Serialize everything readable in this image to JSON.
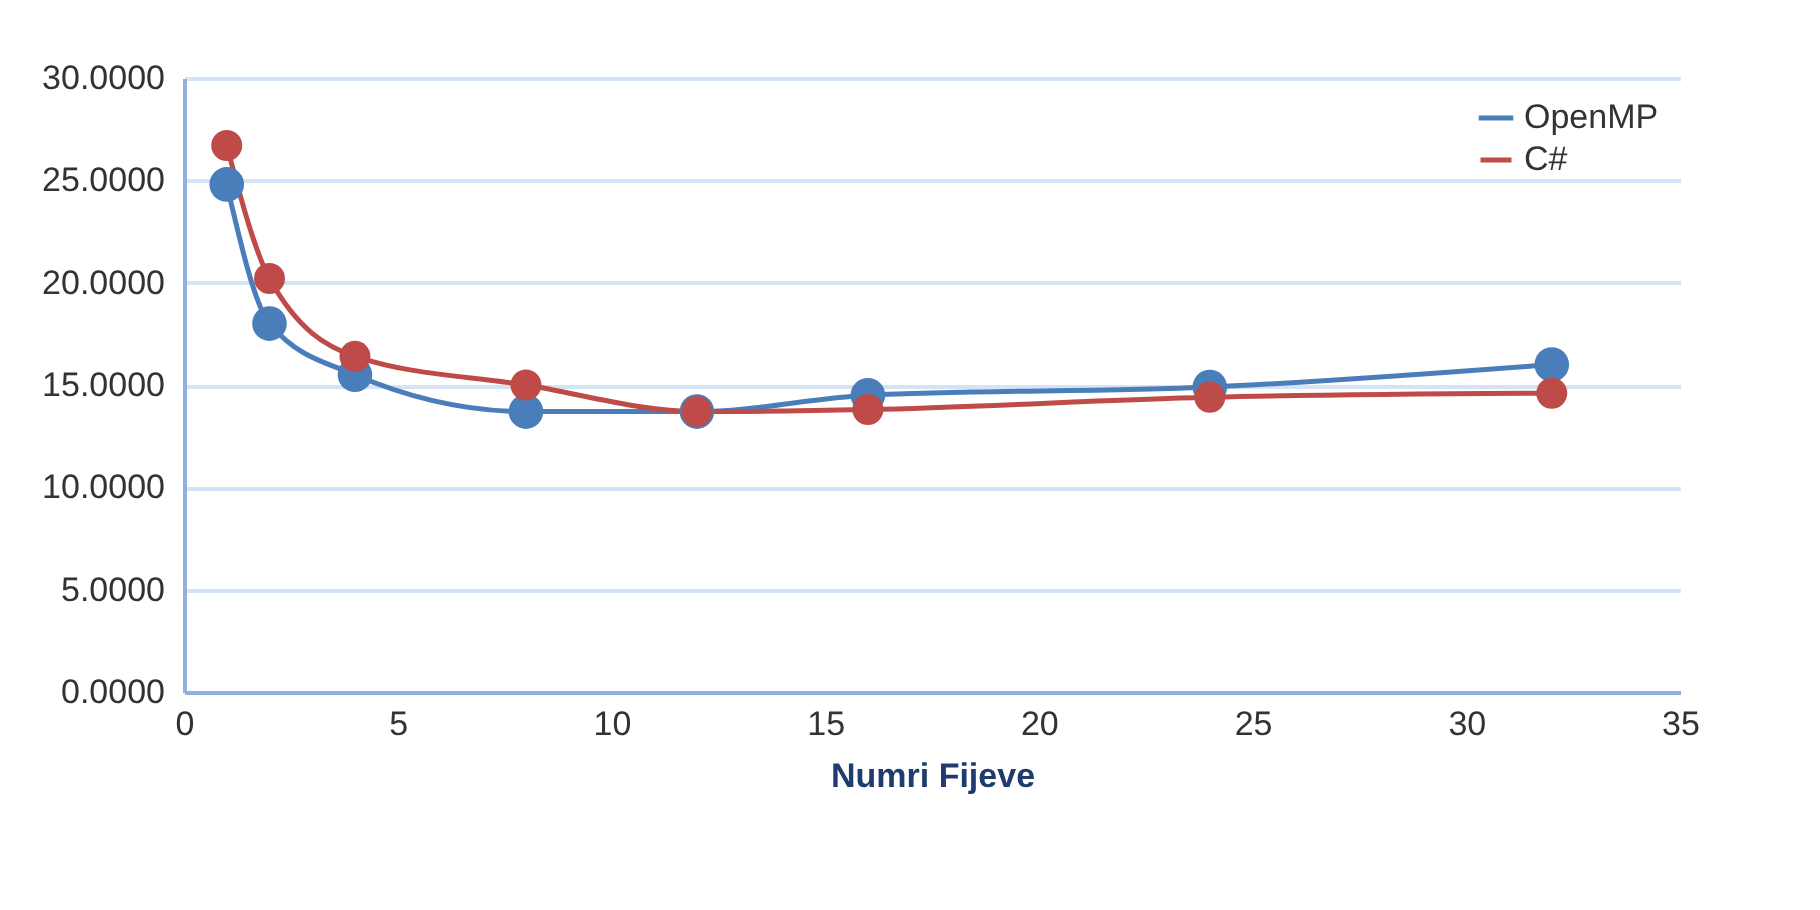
{
  "chart_data": {
    "type": "line",
    "xlabel": "Numri Fijeve",
    "x": [
      1,
      2,
      4,
      8,
      12,
      16,
      24,
      32
    ],
    "series": [
      {
        "name": "OpenMP",
        "color": "#4a7ebb",
        "values": [
          24.8,
          18.0,
          15.5,
          13.7,
          13.7,
          14.5,
          14.9,
          16.0
        ]
      },
      {
        "name": "C#",
        "color": "#be4b48",
        "values": [
          26.7,
          20.2,
          16.4,
          15.0,
          13.7,
          13.8,
          14.4,
          14.6
        ]
      }
    ],
    "xlim": [
      0,
      35
    ],
    "xticks": [
      0,
      5,
      10,
      15,
      20,
      25,
      30,
      35
    ],
    "ylim": [
      0,
      30
    ],
    "yticks": [
      {
        "value": 0,
        "label": "0.0000"
      },
      {
        "value": 5,
        "label": "5.0000"
      },
      {
        "value": 10,
        "label": "10.0000"
      },
      {
        "value": 15,
        "label": "15.0000"
      },
      {
        "value": 20,
        "label": "20.0000"
      },
      {
        "value": 25,
        "label": "25.0000"
      },
      {
        "value": 30,
        "label": "30.0000"
      }
    ],
    "grid": "y",
    "legend": "top right",
    "marker": "circle",
    "line_style": "solid"
  }
}
